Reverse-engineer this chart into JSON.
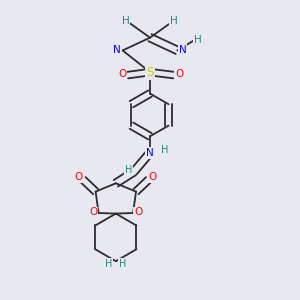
{
  "background_color": "#e8e8f0",
  "figure_size": [
    3.0,
    3.0
  ],
  "dpi": 100,
  "atom_colors": {
    "C": "#2c2c2c",
    "N": "#0000ff",
    "O": "#ff0000",
    "S": "#cccc00",
    "H": "#2c8080"
  },
  "bond_color": "#2c2c2c"
}
